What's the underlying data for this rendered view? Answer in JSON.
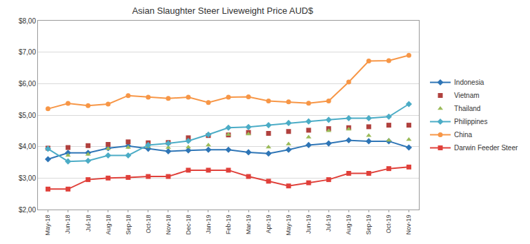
{
  "chart_data": {
    "type": "line",
    "title": "Asian Slaughter Steer Liveweight Price AUD$",
    "categories": [
      "May-18",
      "Jun-18",
      "Jul-18",
      "Aug-18",
      "Sep-18",
      "Oct-18",
      "Nov-18",
      "Dec-18",
      "Jan-19",
      "Feb-19",
      "Mar-19",
      "Apr-19",
      "May-19",
      "Jun-19",
      "Jul-19",
      "Aug-19",
      "Sep-19",
      "Oct-19",
      "Nov-19"
    ],
    "series": [
      {
        "name": "Indonesia",
        "color": "#2e75b6",
        "marker": "diamond",
        "line_style": "solid",
        "values": [
          3.6,
          3.8,
          3.8,
          3.95,
          4.02,
          3.93,
          3.85,
          3.88,
          3.9,
          3.9,
          3.82,
          3.78,
          3.9,
          4.05,
          4.1,
          4.2,
          4.17,
          4.17,
          3.97
        ]
      },
      {
        "name": "Vietnam",
        "color": "#b0413e",
        "marker": "square",
        "line_style": "none",
        "values": [
          3.95,
          3.97,
          4.03,
          4.07,
          4.15,
          4.12,
          4.13,
          4.28,
          4.35,
          4.37,
          4.45,
          4.42,
          4.48,
          4.52,
          4.57,
          4.6,
          4.63,
          4.68,
          4.68
        ]
      },
      {
        "name": "Thailand",
        "color": "#9bbb59",
        "marker": "triangle-up",
        "line_style": "none",
        "values": [
          3.95,
          3.72,
          3.75,
          3.93,
          3.97,
          4.0,
          3.97,
          3.98,
          4.05,
          4.38,
          4.4,
          3.98,
          4.08,
          4.3,
          4.5,
          4.55,
          4.35,
          4.2,
          4.22
        ]
      },
      {
        "name": "Philippines",
        "color": "#4bacc6",
        "marker": "diamond",
        "line_style": "solid",
        "values": [
          3.93,
          3.53,
          3.55,
          3.72,
          3.72,
          4.05,
          4.1,
          4.18,
          4.38,
          4.6,
          4.62,
          4.68,
          4.75,
          4.8,
          4.85,
          4.9,
          4.9,
          4.95,
          5.35
        ]
      },
      {
        "name": "China",
        "color": "#f79646",
        "marker": "circle",
        "line_style": "solid",
        "values": [
          5.2,
          5.37,
          5.3,
          5.35,
          5.62,
          5.57,
          5.53,
          5.57,
          5.4,
          5.57,
          5.58,
          5.45,
          5.42,
          5.38,
          5.45,
          6.05,
          6.72,
          6.73,
          6.9
        ]
      },
      {
        "name": "Darwin Feeder Steer",
        "color": "#e0403a",
        "marker": "square",
        "line_style": "solid",
        "values": [
          2.65,
          2.65,
          2.95,
          3.0,
          3.02,
          3.05,
          3.05,
          3.25,
          3.25,
          3.25,
          3.05,
          2.9,
          2.75,
          2.85,
          2.95,
          3.15,
          3.15,
          3.3,
          3.35
        ]
      }
    ],
    "ylim": [
      2,
      8
    ],
    "yticks": [
      {
        "value": 2,
        "label": "$2,00"
      },
      {
        "value": 3,
        "label": "$3,00"
      },
      {
        "value": 4,
        "label": "$4,00"
      },
      {
        "value": 5,
        "label": "$5,00"
      },
      {
        "value": 6,
        "label": "$6,00"
      },
      {
        "value": 7,
        "label": "$7,00"
      },
      {
        "value": 8,
        "label": "$8,00"
      }
    ],
    "grid": true,
    "legend": "right"
  }
}
